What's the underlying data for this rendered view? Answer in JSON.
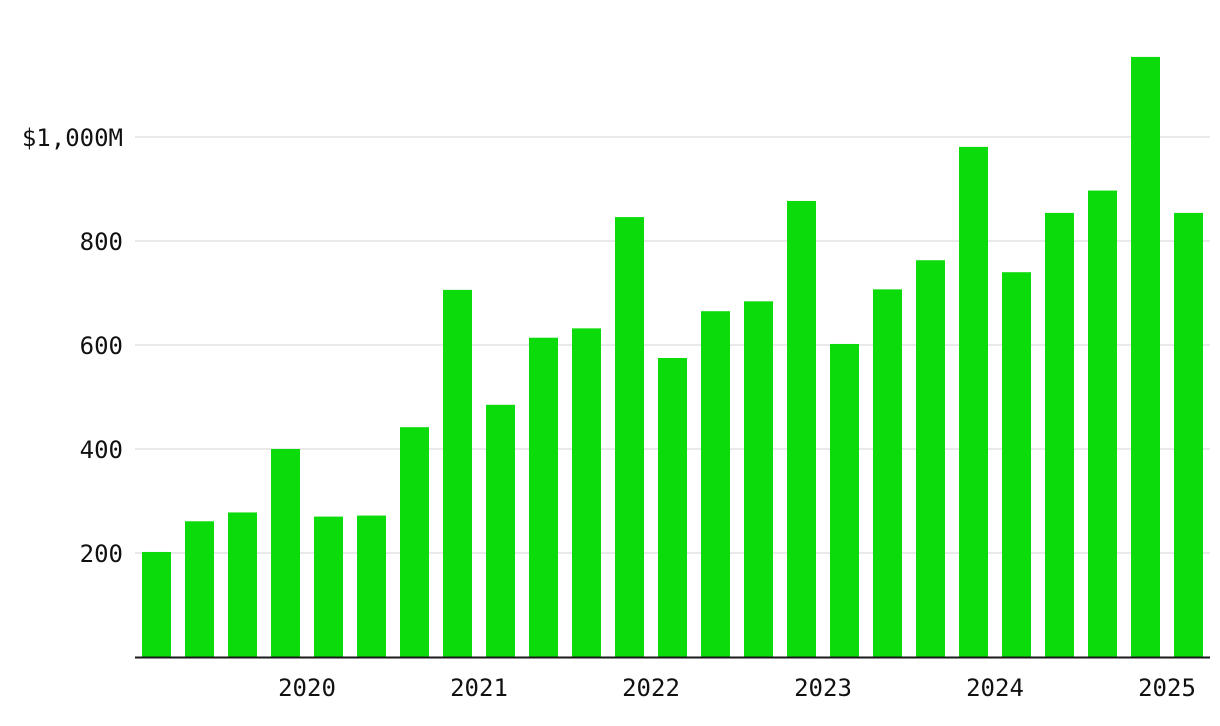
{
  "chart_data": {
    "type": "bar",
    "title": "",
    "xlabel": "",
    "ylabel": "",
    "bar_color": "#0bdb0b",
    "grid": true,
    "ylim": [
      0,
      1200
    ],
    "y_ticks": [
      {
        "value": 200,
        "label": "200"
      },
      {
        "value": 400,
        "label": "400"
      },
      {
        "value": 600,
        "label": "600"
      },
      {
        "value": 800,
        "label": "800"
      },
      {
        "value": 1000,
        "label": "$1,000M"
      }
    ],
    "x_year_labels": [
      {
        "label": "2020",
        "at_bar_index": 3.5
      },
      {
        "label": "2021",
        "at_bar_index": 7.5
      },
      {
        "label": "2022",
        "at_bar_index": 11.5
      },
      {
        "label": "2023",
        "at_bar_index": 15.5
      },
      {
        "label": "2024",
        "at_bar_index": 19.5
      },
      {
        "label": "2025",
        "at_bar_index": 23.5
      }
    ],
    "values": [
      202,
      261,
      278,
      400,
      270,
      272,
      442,
      706,
      485,
      614,
      632,
      846,
      575,
      665,
      684,
      877,
      602,
      707,
      763,
      981,
      740,
      854,
      897,
      1154,
      854
    ]
  }
}
